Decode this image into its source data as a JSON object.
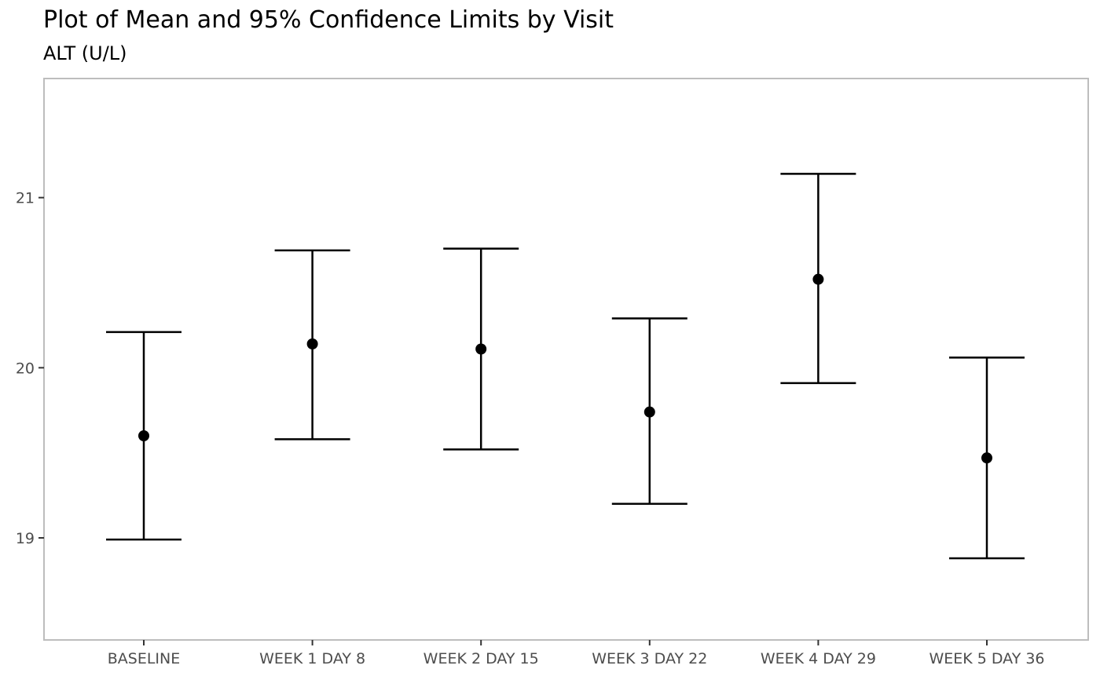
{
  "chart_data": {
    "type": "scatter",
    "title": "Plot of Mean and 95% Confidence Limits by Visit",
    "subtitle": "ALT (U/L)",
    "xlabel": "",
    "ylabel": "",
    "categories": [
      "BASELINE",
      "WEEK 1 DAY 8",
      "WEEK 2 DAY 15",
      "WEEK 3 DAY 22",
      "WEEK 4 DAY 29",
      "WEEK 5 DAY 36"
    ],
    "series": [
      {
        "mean": [
          19.6,
          20.14,
          20.11,
          19.74,
          20.52,
          19.47
        ],
        "lower": [
          18.99,
          19.58,
          19.52,
          19.2,
          19.91,
          18.88
        ],
        "upper": [
          20.21,
          20.69,
          20.7,
          20.29,
          21.14,
          20.06
        ]
      }
    ],
    "yticks": [
      19,
      20,
      21
    ],
    "ylim": [
      18.4,
      21.7
    ],
    "grid": false,
    "legend": "none",
    "colors": {
      "marks": "#000000",
      "panel_border": "#bdbdbd",
      "tick_label": "#4d4d4d",
      "tick": "#333333"
    }
  }
}
